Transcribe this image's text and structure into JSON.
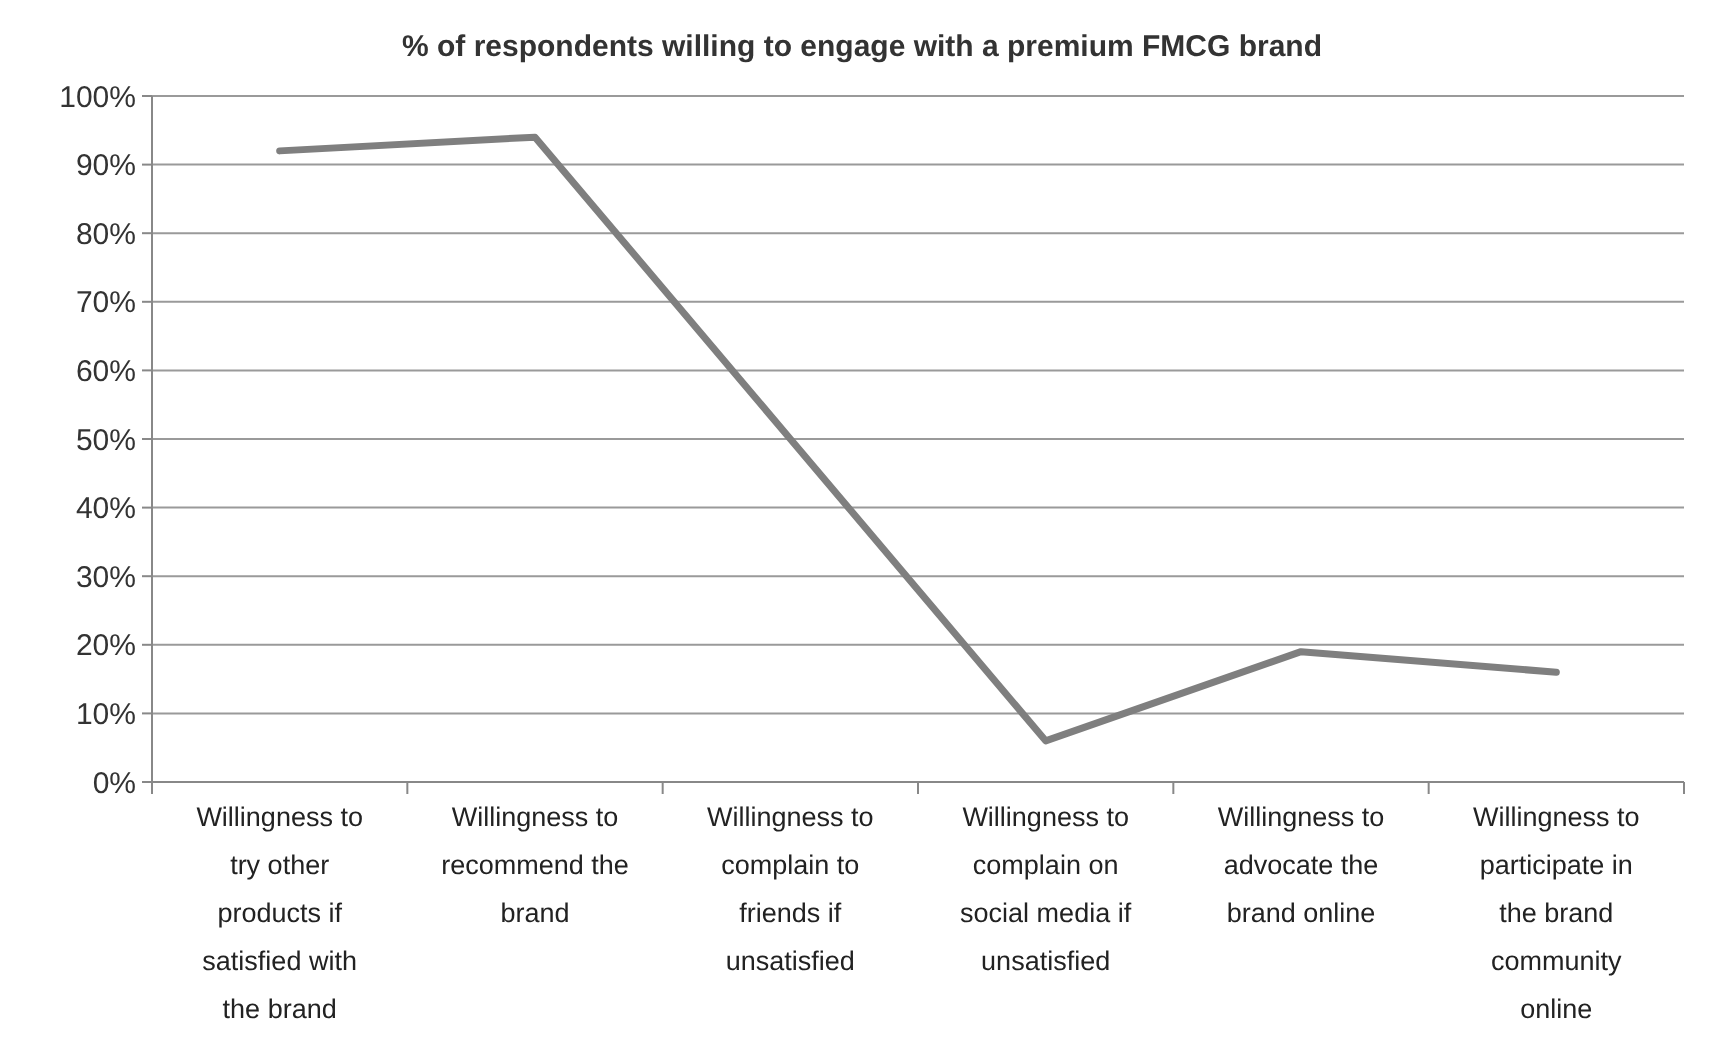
{
  "chart_data": {
    "type": "line",
    "title": "% of respondents willing to engage with a premium FMCG brand",
    "categories": [
      "Willingness to try other products if satisfied with the brand",
      "Willingness to recommend the brand",
      "Willingness to complain to friends if unsatisfied",
      "Willingness to complain on social media if unsatisfied",
      "Willingness to advocate the brand online",
      "Willingness to participate in the brand community online"
    ],
    "series": [
      {
        "color": "#7f7f7f",
        "values": [
          92,
          94,
          50,
          6,
          19,
          16
        ]
      }
    ],
    "ylim": [
      0,
      100
    ],
    "yticks": [
      {
        "value": 0,
        "label": "0%"
      },
      {
        "value": 10,
        "label": "10%"
      },
      {
        "value": 20,
        "label": "20%"
      },
      {
        "value": 30,
        "label": "30%"
      },
      {
        "value": 40,
        "label": "40%"
      },
      {
        "value": 50,
        "label": "50%"
      },
      {
        "value": 60,
        "label": "60%"
      },
      {
        "value": 70,
        "label": "70%"
      },
      {
        "value": 80,
        "label": "80%"
      },
      {
        "value": 90,
        "label": "90%"
      },
      {
        "value": 100,
        "label": "100%"
      }
    ],
    "grid": "y",
    "marker": "none",
    "line_style": "solid"
  }
}
